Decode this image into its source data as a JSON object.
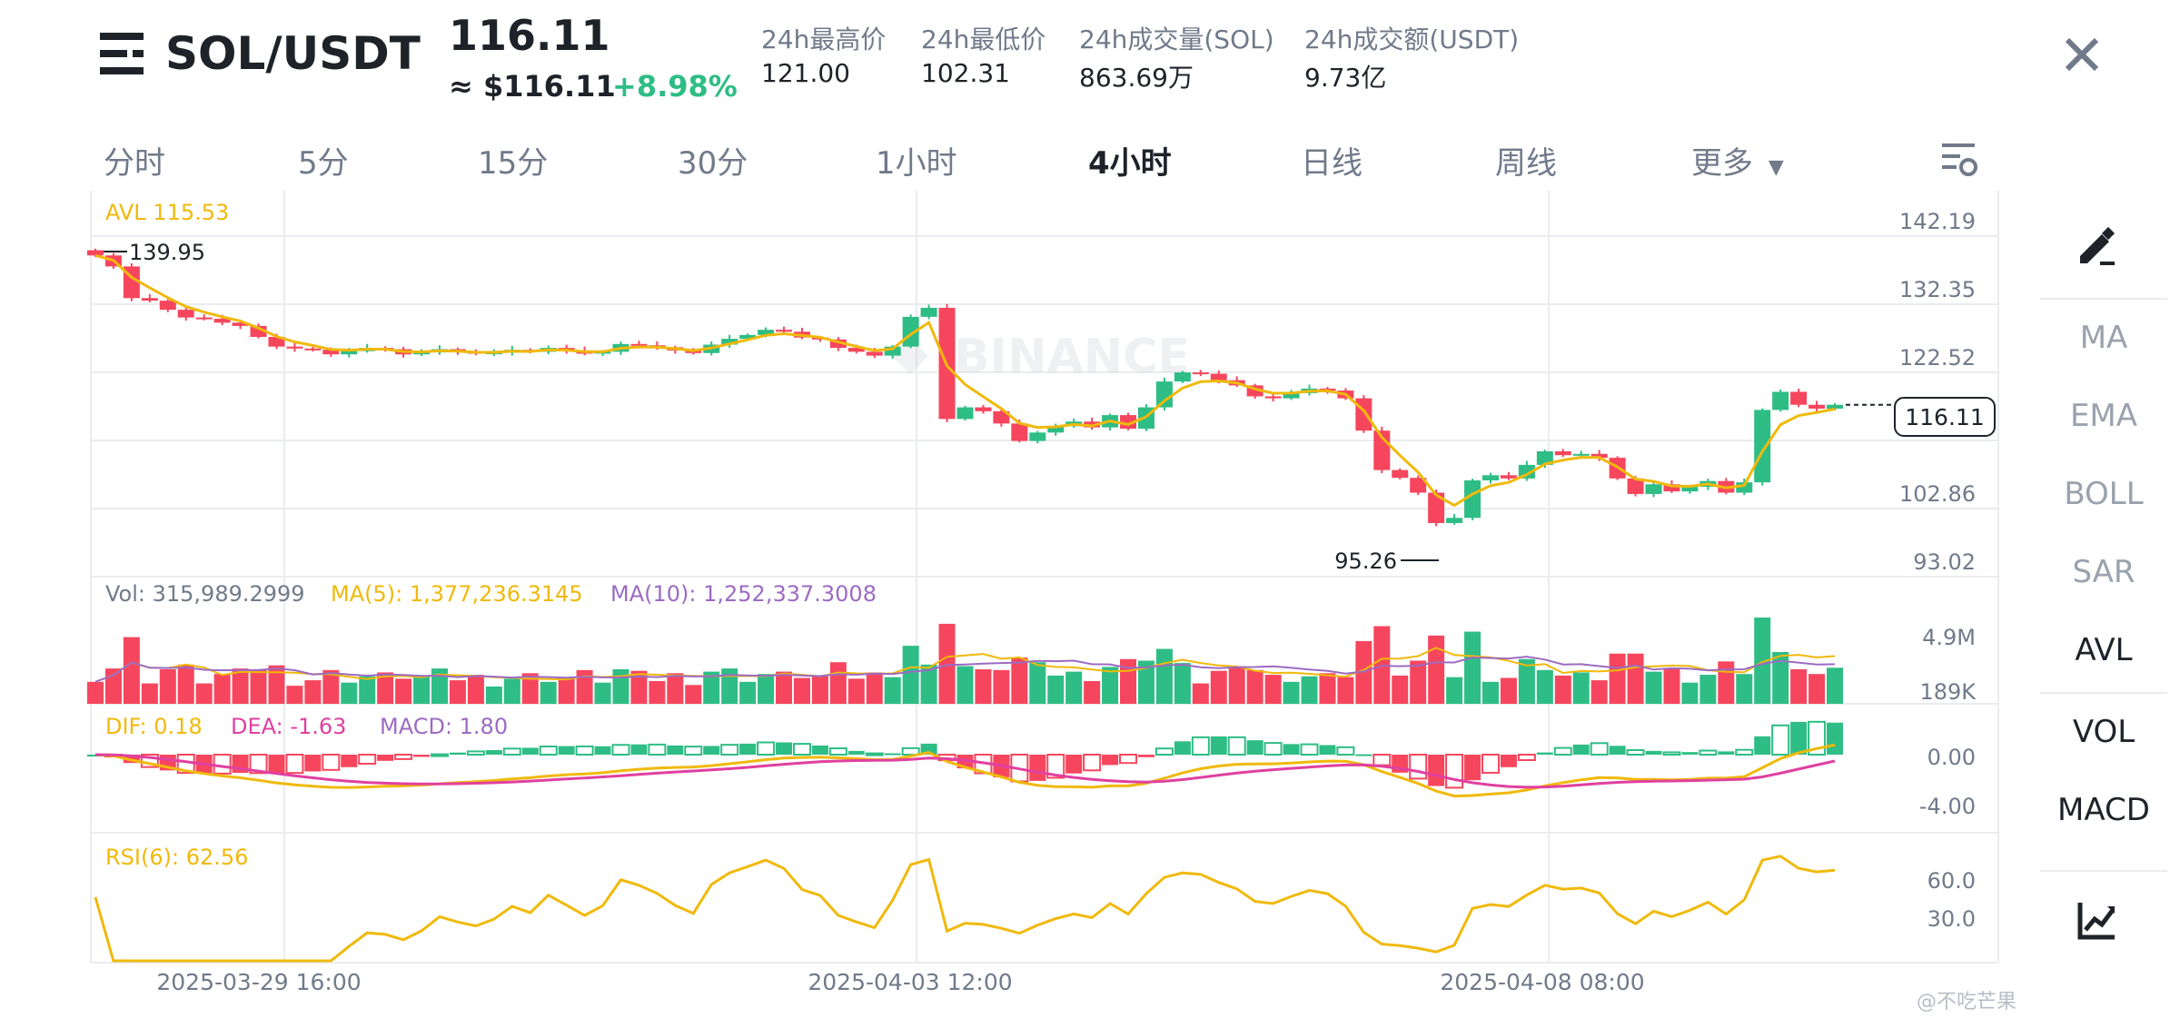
{
  "header": {
    "pair": "SOL/USDT",
    "last_price": "116.11",
    "usd_price": "≈ $116.11",
    "change": "+8.98%",
    "stats": [
      {
        "label": "24h最高价",
        "value": "121.00"
      },
      {
        "label": "24h最低价",
        "value": "102.31"
      },
      {
        "label": "24h成交量(SOL)",
        "value": "863.69万"
      },
      {
        "label": "24h成交额(USDT)",
        "value": "9.73亿"
      }
    ]
  },
  "tabs": [
    "分时",
    "5分",
    "15分",
    "30分",
    "1小时",
    "4小时",
    "日线",
    "周线",
    "更多"
  ],
  "active_tab": "4小时",
  "indicators": [
    "MA",
    "EMA",
    "BOLL",
    "SAR",
    "AVL",
    "VOL",
    "MACD"
  ],
  "active_indicators": [
    "AVL",
    "VOL",
    "MACD"
  ],
  "colors": {
    "up": "#2ebd85",
    "down": "#f6465d",
    "avl": "#f0b90b",
    "ma10": "#9c6bc3",
    "dea": "#e040a0",
    "rsi": "#f0b90b"
  },
  "price_panel": {
    "avl_label": "AVL 115.53",
    "high_marker": "139.95",
    "low_marker": "95.26",
    "current_tag": "116.11",
    "axis_labels": [
      "142.19",
      "132.35",
      "122.52",
      "102.86",
      "93.02"
    ],
    "watermark": "BINANCE"
  },
  "volume_panel": {
    "vol_label": "Vol: 315,989.2999",
    "ma5_label": "MA(5): 1,377,236.3145",
    "ma10_label": "MA(10): 1,252,337.3008",
    "axis_labels": [
      "4.9M",
      "189K"
    ]
  },
  "macd_panel": {
    "dif_label": "DIF: 0.18",
    "dea_label": "DEA: -1.63",
    "macd_label": "MACD: 1.80",
    "axis_labels": [
      "0.00",
      "-4.00"
    ]
  },
  "rsi_panel": {
    "rsi_label": "RSI(6): 62.56",
    "axis_labels": [
      "60.0",
      "30.0"
    ]
  },
  "time_axis": [
    "2025-03-29 16:00",
    "2025-04-03 12:00",
    "2025-04-08 08:00"
  ],
  "watermark_author": "@不吃芒果",
  "chart_data": {
    "type": "candlestick",
    "ylim": [
      93.02,
      142.19
    ],
    "closes": [
      139.2,
      137.5,
      132.6,
      132.2,
      130.8,
      129.6,
      129.4,
      128.8,
      128.3,
      126.6,
      125.1,
      124.8,
      124.6,
      123.9,
      124.4,
      124.9,
      124.7,
      123.9,
      124.2,
      124.7,
      124.3,
      124.0,
      124.2,
      124.6,
      124.3,
      124.9,
      124.5,
      124.0,
      124.3,
      125.5,
      125.3,
      125.0,
      124.5,
      124.1,
      125.4,
      126.3,
      126.9,
      127.7,
      127.4,
      126.5,
      126.2,
      124.9,
      124.3,
      123.7,
      125.1,
      129.7,
      131.1,
      113.9,
      115.7,
      115.1,
      113.2,
      110.5,
      111.8,
      112.8,
      113.5,
      112.6,
      114.5,
      112.4,
      115.7,
      119.7,
      121.1,
      120.9,
      119.9,
      119.1,
      117.4,
      117.1,
      117.9,
      118.6,
      118.3,
      117.1,
      112.1,
      106.0,
      104.8,
      102.5,
      97.8,
      98.6,
      104.4,
      105.2,
      104.7,
      106.8,
      108.9,
      108.3,
      108.5,
      107.9,
      104.7,
      102.3,
      103.8,
      102.7,
      103.4,
      104.3,
      102.5,
      104.1,
      115.3,
      118.1,
      116.1,
      115.5,
      116.1
    ]
  }
}
